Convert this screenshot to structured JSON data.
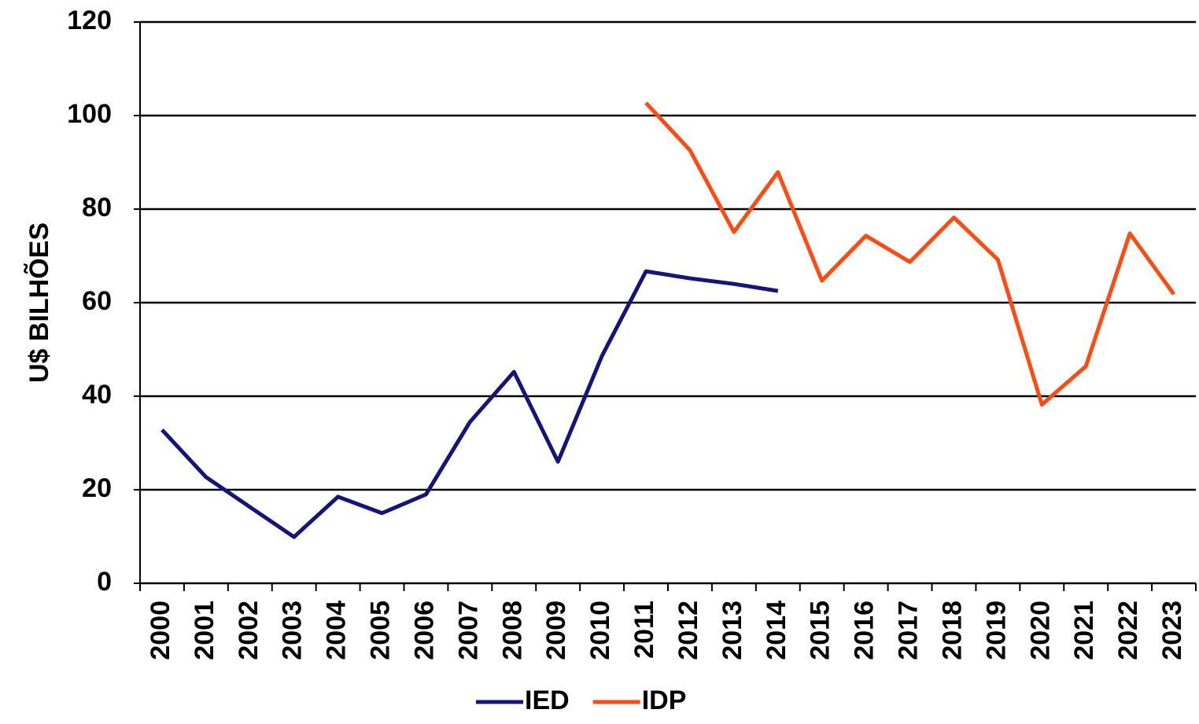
{
  "chart_data": {
    "type": "line",
    "y_label": "U$ BILHÕES",
    "categories": [
      "2000",
      "2001",
      "2002",
      "2003",
      "2004",
      "2005",
      "2006",
      "2007",
      "2008",
      "2009",
      "2010",
      "2011",
      "2012",
      "2013",
      "2014",
      "2015",
      "2016",
      "2017",
      "2018",
      "2019",
      "2020",
      "2021",
      "2022",
      "2023"
    ],
    "series": [
      {
        "name": "IED",
        "color": "#14147a",
        "values": [
          32.8,
          22.7,
          16.3,
          9.9,
          18.5,
          15,
          19,
          34.5,
          45.2,
          26,
          48.6,
          66.7,
          65.2,
          64,
          62.5,
          null,
          null,
          null,
          null,
          null,
          null,
          null,
          null,
          null
        ]
      },
      {
        "name": "IDP",
        "color": "#ff4a12",
        "values": [
          null,
          null,
          null,
          null,
          null,
          null,
          null,
          null,
          null,
          null,
          null,
          102.7,
          92.6,
          75.1,
          87.9,
          64.7,
          74.3,
          68.7,
          78.2,
          69.2,
          38.2,
          46.4,
          74.8,
          61.8
        ]
      }
    ],
    "ylim": [
      0,
      120
    ],
    "yticks": [
      0,
      20,
      40,
      60,
      80,
      100,
      120
    ],
    "grid": true,
    "legend": "bottom"
  }
}
